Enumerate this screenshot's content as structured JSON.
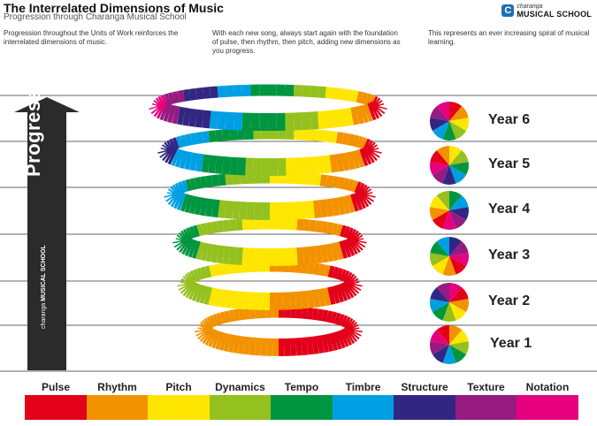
{
  "header": {
    "title": "The Interrelated Dimensions of Music",
    "subtitle": "Progression through Charanga Musical School"
  },
  "logo": {
    "small": "charanga",
    "big": "MUSICAL SCHOOL"
  },
  "descriptions": [
    "Progression throughout the Units of Work reinforces the interrelated dimensions of music.",
    "With each new song, always start again with the foundation of pulse, then rhythm, then pitch, adding new dimensions as you progress.",
    "This represents an ever increasing spiral of musical learning."
  ],
  "arrow": {
    "label": "Progression",
    "logo_small": "charanga",
    "logo_big": "MUSICAL SCHOOL"
  },
  "years": [
    "Year 6",
    "Year 5",
    "Year 4",
    "Year 3",
    "Year 2",
    "Year 1"
  ],
  "dimensions": [
    {
      "name": "Pulse",
      "color": "#e2001a"
    },
    {
      "name": "Rhythm",
      "color": "#f39200"
    },
    {
      "name": "Pitch",
      "color": "#ffe600"
    },
    {
      "name": "Dynamics",
      "color": "#95c11f"
    },
    {
      "name": "Tempo",
      "color": "#009640"
    },
    {
      "name": "Timbre",
      "color": "#009fe3"
    },
    {
      "name": "Structure",
      "color": "#312783"
    },
    {
      "name": "Texture",
      "color": "#951b81"
    },
    {
      "name": "Notation",
      "color": "#e6007e"
    }
  ]
}
